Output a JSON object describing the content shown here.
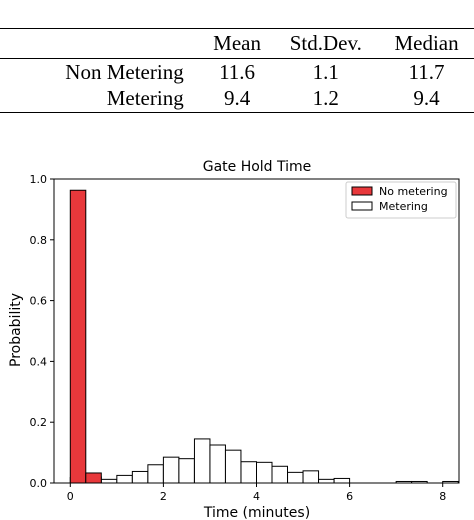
{
  "table": {
    "headers": [
      "",
      "Mean",
      "Std.Dev.",
      "Median"
    ],
    "rows": [
      {
        "label": "Non Metering",
        "values": [
          "11.6",
          "1.1",
          "11.7"
        ]
      },
      {
        "label": "Metering",
        "values": [
          "9.4",
          "1.2",
          "9.4"
        ]
      }
    ]
  },
  "chart_data": {
    "type": "bar",
    "title": "Gate Hold Time",
    "xlabel": "Time (minutes)",
    "ylabel": "Probability",
    "xlim": [
      -0.35,
      8.35
    ],
    "ylim": [
      0,
      1.0
    ],
    "xticks": [
      "0",
      "2",
      "4",
      "6",
      "8"
    ],
    "xtick_values": [
      0,
      2,
      4,
      6,
      8
    ],
    "yticks": [
      "0.0",
      "0.2",
      "0.4",
      "0.6",
      "0.8",
      "1.0"
    ],
    "ytick_values": [
      0,
      0.2,
      0.4,
      0.6,
      0.8,
      1.0
    ],
    "legend_position": "top-right",
    "bin_width": 0.333,
    "series": [
      {
        "name": "No metering",
        "color": "#e8383b",
        "bins_start": [
          0.0,
          0.333
        ],
        "values": [
          0.963,
          0.033
        ]
      },
      {
        "name": "Metering",
        "color": "#ffffff",
        "bins_start": [
          0.0,
          0.333,
          0.667,
          1.0,
          1.333,
          1.667,
          2.0,
          2.333,
          2.667,
          3.0,
          3.333,
          3.667,
          4.0,
          4.333,
          4.667,
          5.0,
          5.333,
          5.667,
          6.0,
          6.333,
          6.667,
          7.0,
          7.333,
          7.667,
          8.0
        ],
        "values": [
          0.018,
          0.02,
          0.012,
          0.025,
          0.038,
          0.06,
          0.085,
          0.08,
          0.145,
          0.125,
          0.108,
          0.07,
          0.068,
          0.055,
          0.035,
          0.04,
          0.012,
          0.015,
          0.0,
          0.0,
          0.0,
          0.005,
          0.005,
          0.0,
          0.005
        ]
      }
    ]
  }
}
